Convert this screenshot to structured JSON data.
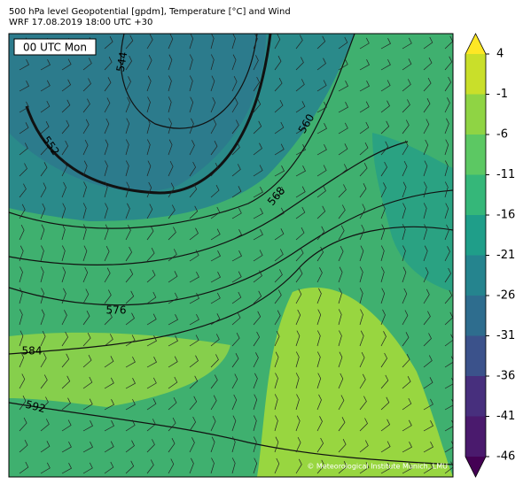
{
  "header": {
    "title": "500 hPa level Geopotential [gpdm], Temperature [°C] and Wind",
    "subtitle": "WRF 17.08.2019 18:00 UTC +30"
  },
  "map": {
    "time_label": "00 UTC Mon",
    "contour_labels": [
      544,
      552,
      560,
      568,
      576,
      584,
      592
    ],
    "credit": "© Meteorological Institute Munich, LMU"
  },
  "colorbar": {
    "ticks": [
      4,
      -1,
      -6,
      -11,
      -16,
      -21,
      -26,
      -31,
      -36,
      -41,
      -46
    ],
    "colors": [
      "#c9df2a",
      "#8fd444",
      "#5cc863",
      "#35b779",
      "#1f9e89",
      "#25848e",
      "#2e6d8e",
      "#3b528b",
      "#472f7d",
      "#4a1a6d"
    ],
    "top_color": "#fde725",
    "bottom_color": "#440154"
  }
}
